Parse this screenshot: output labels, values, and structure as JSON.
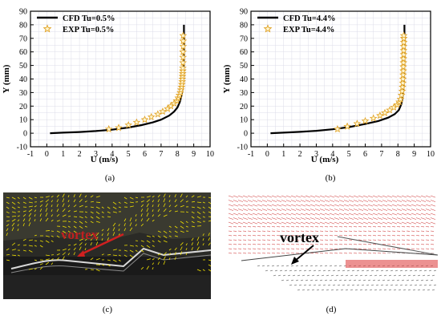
{
  "chart_data": [
    {
      "type": "line",
      "xlabel": "U (m/s)",
      "ylabel": "Y (mm)",
      "xlim": [
        -1,
        10
      ],
      "ylim": [
        -10,
        90
      ],
      "xticks": [
        "-1",
        "0",
        "1",
        "2",
        "3",
        "4",
        "5",
        "6",
        "7",
        "8",
        "9",
        "10"
      ],
      "yticks": [
        "-10",
        "0",
        "10",
        "20",
        "30",
        "40",
        "50",
        "60",
        "70",
        "80",
        "90"
      ],
      "grid": true,
      "legend_position": "top-left",
      "series": [
        {
          "name": "CFD Tu=0.5%",
          "kind": "line",
          "color": "#000000",
          "x": [
            0.2,
            1.0,
            2.0,
            3.0,
            4.0,
            5.0,
            5.8,
            6.5,
            7.0,
            7.5,
            7.8,
            8.0,
            8.15,
            8.25,
            8.32,
            8.36,
            8.38,
            8.4,
            8.4
          ],
          "y": [
            0.0,
            0.4,
            0.9,
            1.6,
            2.6,
            4.2,
            6.0,
            8.0,
            10.0,
            13.0,
            16.0,
            19.0,
            23.0,
            28.0,
            35.0,
            45.0,
            55.0,
            70.0,
            80.0
          ]
        },
        {
          "name": "EXP Tu=0.5%",
          "kind": "scatter",
          "color": "#e0a020",
          "x": [
            3.8,
            4.4,
            5.0,
            5.5,
            6.0,
            6.4,
            6.8,
            7.1,
            7.4,
            7.6,
            7.8,
            7.95,
            8.05,
            8.12,
            8.18,
            8.22,
            8.25,
            8.27,
            8.29,
            8.3,
            8.31,
            8.32,
            8.33,
            8.33,
            8.34,
            8.34,
            8.34,
            8.35,
            8.35,
            8.35
          ],
          "y": [
            3,
            4,
            6,
            8,
            10,
            12,
            14,
            16,
            18,
            20,
            22,
            24,
            26,
            28,
            30,
            32,
            34,
            36,
            38,
            40,
            42,
            44,
            46,
            48,
            52,
            56,
            60,
            64,
            68,
            72
          ]
        }
      ]
    },
    {
      "type": "line",
      "xlabel": "U (m/s)",
      "ylabel": "Y (mm)",
      "xlim": [
        -1,
        10
      ],
      "ylim": [
        -10,
        90
      ],
      "xticks": [
        "-1",
        "0",
        "1",
        "2",
        "3",
        "4",
        "5",
        "6",
        "7",
        "8",
        "9",
        "10"
      ],
      "yticks": [
        "-10",
        "0",
        "10",
        "20",
        "30",
        "40",
        "50",
        "60",
        "70",
        "80",
        "90"
      ],
      "grid": true,
      "legend_position": "top-left",
      "series": [
        {
          "name": "CFD Tu=4.4%",
          "kind": "line",
          "color": "#000000",
          "x": [
            0.2,
            1.0,
            2.0,
            3.0,
            4.0,
            5.0,
            6.0,
            6.8,
            7.4,
            7.8,
            8.05,
            8.2,
            8.28,
            8.33,
            8.36,
            8.38,
            8.4,
            8.4
          ],
          "y": [
            0.0,
            0.4,
            1.0,
            1.8,
            2.9,
            4.5,
            6.8,
            9.0,
            11.5,
            14.0,
            17.0,
            21.0,
            26.0,
            33.0,
            43.0,
            55.0,
            70.0,
            80.0
          ]
        },
        {
          "name": "EXP Tu=4.4%",
          "kind": "scatter",
          "color": "#e0a020",
          "x": [
            4.3,
            4.9,
            5.5,
            6.0,
            6.5,
            6.9,
            7.2,
            7.5,
            7.75,
            7.95,
            8.08,
            8.16,
            8.22,
            8.26,
            8.28,
            8.3,
            8.31,
            8.32,
            8.33,
            8.33,
            8.34,
            8.34,
            8.35,
            8.35,
            8.35,
            8.36,
            8.36,
            8.36
          ],
          "y": [
            3,
            5,
            7,
            9,
            11,
            13,
            15,
            17,
            19,
            21,
            23,
            25,
            28,
            31,
            34,
            37,
            40,
            43,
            46,
            49,
            52,
            55,
            58,
            61,
            64,
            67,
            70,
            72
          ]
        }
      ]
    }
  ],
  "captions": {
    "a": "(a)",
    "b": "(b)",
    "c": "(c)",
    "d": "(d)"
  },
  "images": {
    "c_label": "vortex",
    "d_label": "vortex"
  },
  "colors": {
    "grid": "#dcdce8",
    "marker": "#e0a020",
    "photo_bg": "#1a1a1a",
    "photo_vector": "#f0e000",
    "arrow_red": "#d02020",
    "sim_vector": "#d04040"
  }
}
